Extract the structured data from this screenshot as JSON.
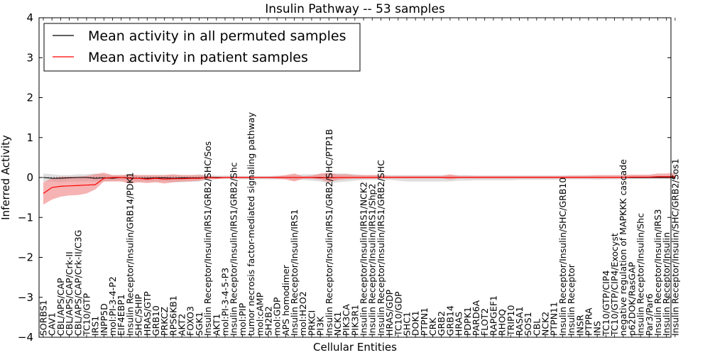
{
  "chart_data": {
    "type": "line",
    "title": "Insulin Pathway -- 53 samples",
    "xlabel": "Cellular Entities",
    "ylabel": "Inferred Activity",
    "ylim": [
      -4,
      4
    ],
    "yticks": [
      -4,
      -3,
      -2,
      -1,
      0,
      1,
      2,
      3,
      4
    ],
    "ytick_labels": [
      "−4",
      "−3",
      "−2",
      "−1",
      "0",
      "1",
      "2",
      "3",
      "4"
    ],
    "legend_position": "top-left",
    "categories": [
      "SORBS1",
      "CAV1",
      "CBL/APS/CAP",
      "CBL/APS/CAP/Crk-II",
      "CBL/APS/CAP/Crk-II/C3G",
      "TC10/GTP",
      "IRS1",
      "INPP5D",
      "mol:PI-3-4-P2",
      "EIF4EBP1",
      "Insulin Receptor/Insulin/GRB14/PDK1",
      "SHC/SHIP",
      "HRAS/GTP",
      "GRB10",
      "PRKCZ",
      "RPS6KB1",
      "AKT2",
      "FOXO3",
      "SGK1",
      "Insulin Receptor/Insulin/IRS1/GRB2/SHC/Sos",
      "AKT1",
      "mol:PI-3-4-5-P3",
      "Insulin Receptor/Insulin/IRS1/GRB2/Shc",
      "mol:PIP",
      "tumor necrosis factor-mediated signaling pathway",
      "mol:cAMP",
      "SH2B2",
      "mol:GDP",
      "APS homodimer",
      "Insulin Receptor/Insulin/IRS1",
      "mol:H2O2",
      "PRKCI",
      "PI3K",
      "Insulin Receptor/Insulin/IRS1/GRB2/SHC/PTP1B",
      "NCK1",
      "PIK3CA",
      "PIK3R1",
      "Insulin Receptor/Insulin/IRS1/NCK2",
      "Insulin Receptor/Insulin/IRS1/Shp2",
      "Insulin Receptor/Insulin/IRS1/GRB2/SHC",
      "HRAS/GDP",
      "TC10/GDP",
      "SHC1",
      "DOK1",
      "PTPN1",
      "CRK",
      "GRB2",
      "GRB14",
      "HRAS",
      "PDPK1",
      "PARD6A",
      "FLOT2",
      "RAPGEF1",
      "RHOQ",
      "TRIP10",
      "RASA1",
      "SOS1",
      "CBL",
      "NCK2",
      "PTPN11",
      "Insulin Receptor/Insulin/SHC/GRB10",
      "Insulin Receptor",
      "INSR",
      "PTPRA",
      "INS",
      "TC10/GTP/CIP4",
      "TC10/GTP/CIP4/Exocyst",
      "negative regulation of MAPKKK cascade",
      "p62DOK/RasGAP",
      "Insulin Receptor/Insulin/Shc",
      "Par3/Par6",
      "Insulin Receptor/Insulin/IRS3",
      "Insulin Receptor/Insulin",
      "Insulin Receptor/Insulin/SHC/GRB2/Sos1"
    ],
    "series": [
      {
        "name": "Mean activity in all permuted samples",
        "color": "#000000",
        "band_color": "#c8c8c8",
        "values": [
          0.0,
          -0.02,
          -0.02,
          -0.01,
          0.0,
          0.0,
          -0.02,
          -0.01,
          -0.02,
          0.0,
          -0.01,
          -0.02,
          -0.02,
          -0.01,
          -0.01,
          -0.02,
          -0.01,
          -0.01,
          -0.01,
          0.0,
          0.0,
          0.0,
          0.0,
          0.0,
          0.0,
          0.0,
          0.0,
          0.0,
          0.0,
          0.0,
          0.0,
          0.0,
          -0.01,
          -0.01,
          0.0,
          0.0,
          0.0,
          0.0,
          0.0,
          0.0,
          0.0,
          0.0,
          0.0,
          0.0,
          0.0,
          0.0,
          0.0,
          0.0,
          0.0,
          0.0,
          0.0,
          0.0,
          0.0,
          0.0,
          0.0,
          0.0,
          0.0,
          0.0,
          0.0,
          0.0,
          0.0,
          0.0,
          0.0,
          0.0,
          0.0,
          0.0,
          0.0,
          0.0,
          0.0,
          0.0,
          0.0,
          0.0,
          0.0,
          0.0
        ],
        "band_lower": [
          -0.1,
          -0.1,
          -0.12,
          -0.1,
          -0.1,
          -0.1,
          -0.1,
          -0.1,
          -0.08,
          -0.08,
          -0.08,
          -0.1,
          -0.1,
          -0.1,
          -0.1,
          -0.12,
          -0.12,
          -0.1,
          -0.1,
          -0.06,
          -0.04,
          -0.04,
          -0.04,
          -0.05,
          -0.05,
          -0.05,
          -0.05,
          -0.05,
          -0.04,
          -0.06,
          -0.06,
          -0.08,
          -0.1,
          -0.14,
          -0.12,
          -0.1,
          -0.08,
          -0.06,
          -0.06,
          -0.06,
          -0.06,
          -0.08,
          -0.1,
          -0.1,
          -0.1,
          -0.1,
          -0.1,
          -0.1,
          -0.08,
          -0.08,
          -0.07,
          -0.07,
          -0.07,
          -0.07,
          -0.07,
          -0.06,
          -0.06,
          -0.06,
          -0.06,
          -0.06,
          -0.05,
          -0.05,
          -0.05,
          -0.05,
          -0.06,
          -0.05,
          -0.05,
          -0.05,
          -0.04,
          -0.04,
          -0.04,
          -0.04,
          -0.04,
          -0.04
        ],
        "band_upper": [
          0.1,
          0.08,
          0.06,
          0.06,
          0.08,
          0.08,
          0.1,
          0.08,
          0.06,
          0.06,
          0.06,
          0.06,
          0.06,
          0.06,
          0.06,
          0.06,
          0.06,
          0.06,
          0.08,
          0.06,
          0.05,
          0.05,
          0.05,
          0.04,
          0.04,
          0.04,
          0.04,
          0.05,
          0.05,
          0.06,
          0.08,
          0.08,
          0.08,
          0.1,
          0.1,
          0.1,
          0.08,
          0.06,
          0.06,
          0.06,
          0.06,
          0.06,
          0.06,
          0.06,
          0.06,
          0.06,
          0.06,
          0.06,
          0.06,
          0.06,
          0.05,
          0.05,
          0.05,
          0.05,
          0.05,
          0.05,
          0.05,
          0.05,
          0.05,
          0.05,
          0.05,
          0.05,
          0.05,
          0.05,
          0.05,
          0.05,
          0.05,
          0.05,
          0.05,
          0.05,
          0.05,
          0.05,
          0.05,
          0.05
        ]
      },
      {
        "name": "Mean activity in patient samples",
        "color": "#ff0000",
        "band_color": "#f08080",
        "values": [
          -0.4,
          -0.25,
          -0.22,
          -0.21,
          -0.2,
          -0.19,
          -0.18,
          -0.02,
          0.0,
          0.0,
          -0.02,
          -0.02,
          -0.04,
          -0.02,
          -0.04,
          -0.03,
          -0.03,
          -0.02,
          -0.02,
          0.0,
          -0.01,
          0.0,
          0.0,
          0.0,
          0.0,
          0.0,
          0.0,
          0.0,
          0.0,
          0.0,
          0.0,
          0.0,
          0.0,
          -0.01,
          0.0,
          0.0,
          0.0,
          0.0,
          0.0,
          0.0,
          0.0,
          0.0,
          0.0,
          0.0,
          0.0,
          0.0,
          0.0,
          0.0,
          0.0,
          0.0,
          0.0,
          0.0,
          0.0,
          0.0,
          0.0,
          0.0,
          0.0,
          0.0,
          0.0,
          0.0,
          0.0,
          0.0,
          0.0,
          0.0,
          0.0,
          0.0,
          0.0,
          0.0,
          0.01,
          0.01,
          0.01,
          0.02,
          0.02,
          0.02
        ],
        "band_lower": [
          -0.68,
          -0.55,
          -0.48,
          -0.45,
          -0.44,
          -0.4,
          -0.3,
          -0.1,
          -0.1,
          -0.1,
          -0.15,
          -0.12,
          -0.14,
          -0.12,
          -0.15,
          -0.12,
          -0.1,
          -0.1,
          -0.08,
          -0.04,
          -0.04,
          -0.02,
          -0.02,
          -0.02,
          -0.02,
          -0.02,
          -0.02,
          -0.03,
          -0.05,
          -0.1,
          -0.03,
          -0.03,
          -0.05,
          -0.12,
          -0.06,
          -0.04,
          -0.03,
          -0.03,
          -0.03,
          -0.02,
          -0.02,
          -0.02,
          -0.02,
          -0.02,
          -0.02,
          -0.02,
          -0.02,
          -0.05,
          -0.02,
          -0.02,
          -0.02,
          -0.02,
          -0.02,
          -0.02,
          -0.02,
          -0.02,
          -0.02,
          -0.02,
          -0.02,
          -0.02,
          -0.02,
          -0.02,
          -0.02,
          -0.02,
          -0.02,
          -0.02,
          -0.02,
          -0.02,
          -0.02,
          -0.02,
          -0.02,
          -0.02,
          -0.02,
          -0.02
        ],
        "band_upper": [
          -0.12,
          -0.02,
          0.02,
          0.02,
          0.02,
          0.04,
          0.08,
          0.12,
          0.06,
          0.06,
          0.08,
          0.06,
          0.06,
          0.06,
          0.06,
          0.08,
          0.06,
          0.06,
          0.06,
          0.04,
          0.02,
          0.02,
          0.02,
          0.02,
          0.02,
          0.02,
          0.02,
          0.03,
          0.06,
          0.1,
          0.03,
          0.05,
          0.1,
          0.12,
          0.08,
          0.08,
          0.06,
          0.06,
          0.06,
          0.06,
          0.04,
          0.04,
          0.04,
          0.04,
          0.04,
          0.04,
          0.04,
          0.08,
          0.04,
          0.04,
          0.04,
          0.04,
          0.04,
          0.04,
          0.04,
          0.04,
          0.04,
          0.04,
          0.04,
          0.04,
          0.04,
          0.05,
          0.05,
          0.05,
          0.06,
          0.06,
          0.06,
          0.06,
          0.07,
          0.07,
          0.07,
          0.1,
          0.1,
          0.12
        ]
      }
    ]
  }
}
